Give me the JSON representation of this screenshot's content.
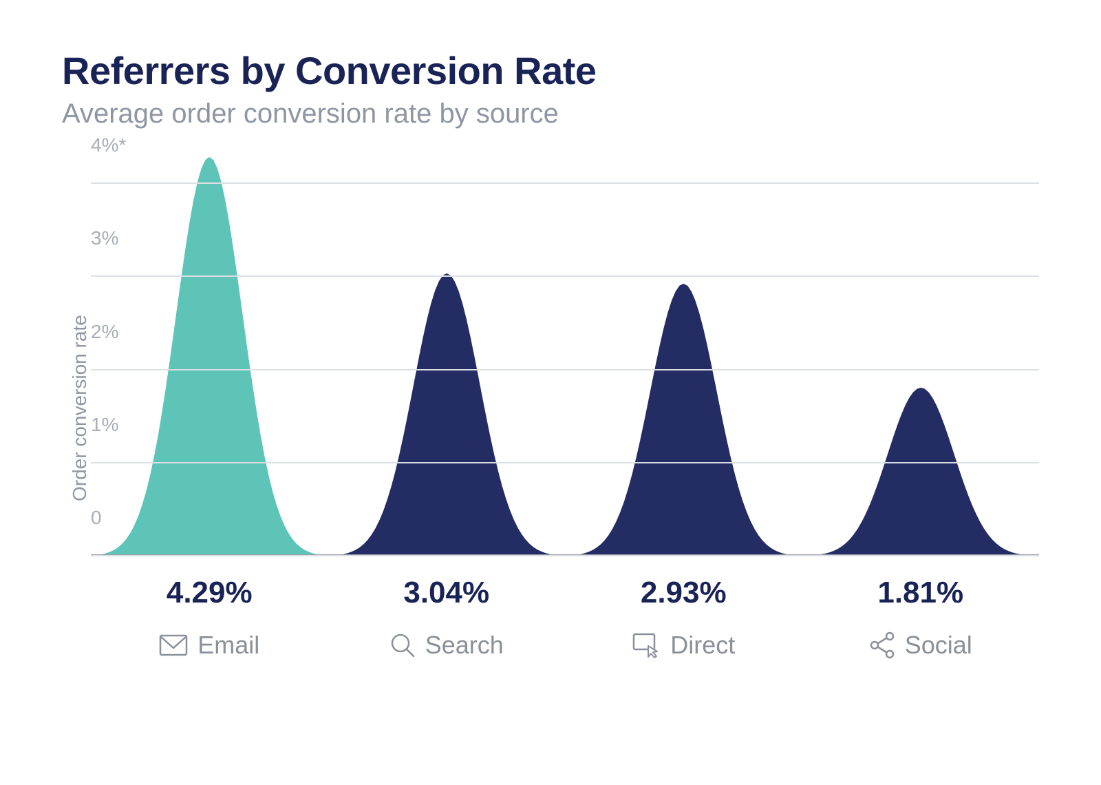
{
  "chart": {
    "type": "bell-bar",
    "title": "Referrers by Conversion Rate",
    "subtitle": "Average order conversion rate by source",
    "yaxis_label": "Order conversion rate",
    "title_color": "#1a2356",
    "subtitle_color": "#8f96a3",
    "yaxis_label_color": "#8f96a3",
    "tick_label_color": "#a8adb8",
    "value_color": "#1a2356",
    "category_label_color": "#8a9099",
    "grid_color": "#dcdfe4",
    "baseline_color": "#9aa0aa",
    "background_color": "#ffffff",
    "title_fontsize": 56,
    "subtitle_fontsize": 40,
    "value_fontsize": 44,
    "label_fontsize": 36,
    "tick_fontsize": 28,
    "ymax": 4.29,
    "yticks": [
      {
        "value": 0,
        "label": "0"
      },
      {
        "value": 1,
        "label": "1%"
      },
      {
        "value": 2,
        "label": "2%"
      },
      {
        "value": 3,
        "label": "3%"
      },
      {
        "value": 4,
        "label": "4%*"
      }
    ],
    "series": [
      {
        "label": "Email",
        "icon": "mail-icon",
        "value": 4.29,
        "value_label": "4.29%",
        "color": "#5ec4b7"
      },
      {
        "label": "Search",
        "icon": "search-icon",
        "value": 3.04,
        "value_label": "3.04%",
        "color": "#232d63"
      },
      {
        "label": "Direct",
        "icon": "cursor-icon",
        "value": 2.93,
        "value_label": "2.93%",
        "color": "#232d63"
      },
      {
        "label": "Social",
        "icon": "share-icon",
        "value": 1.81,
        "value_label": "1.81%",
        "color": "#232d63"
      }
    ]
  }
}
